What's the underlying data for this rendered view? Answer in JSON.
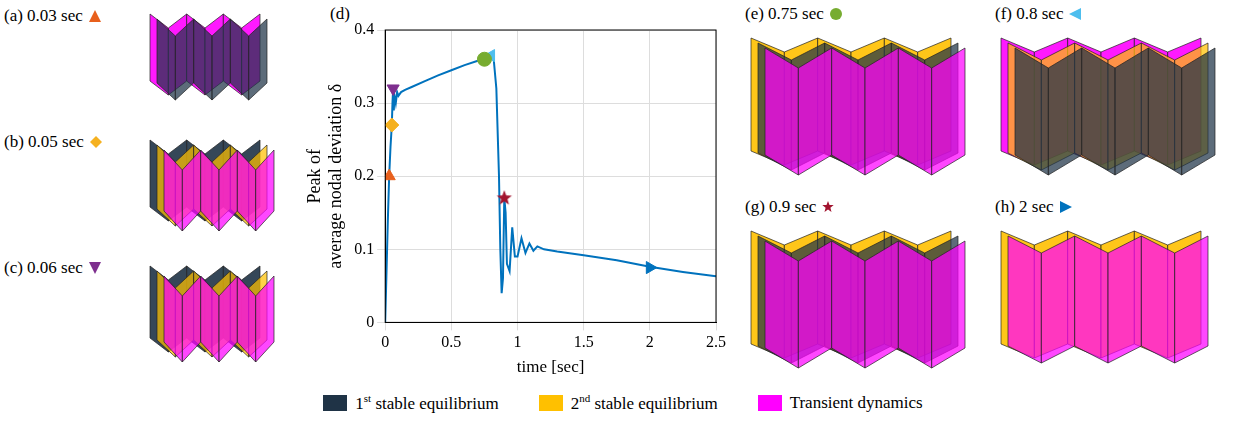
{
  "chart_data": {
    "type": "line",
    "panel_label": "(d)",
    "x_label": "time [sec]",
    "y_label": "Peak of average nodal deviation δ",
    "xlim": [
      0,
      2.5
    ],
    "xticks": [
      0,
      0.5,
      1,
      1.5,
      2,
      2.5
    ],
    "ylim": [
      0,
      0.4
    ],
    "yticks": [
      0,
      0.1,
      0.2,
      0.3,
      0.4
    ],
    "grid": true,
    "series": [
      {
        "color": "#0072bd",
        "line_style": "solid",
        "x": [
          0,
          0.01,
          0.02,
          0.03,
          0.04,
          0.05,
          0.055,
          0.06,
          0.065,
          0.07,
          0.08,
          0.09,
          0.1,
          0.12,
          0.15,
          0.2,
          0.3,
          0.4,
          0.5,
          0.6,
          0.7,
          0.75,
          0.8,
          0.82,
          0.84,
          0.86,
          0.87,
          0.88,
          0.89,
          0.9,
          0.91,
          0.92,
          0.94,
          0.96,
          0.98,
          1.0,
          1.03,
          1.06,
          1.09,
          1.12,
          1.15,
          1.2,
          1.3,
          1.5,
          1.75,
          2.0,
          2.25,
          2.5
        ],
        "values": [
          0,
          0.07,
          0.14,
          0.2,
          0.24,
          0.27,
          0.3,
          0.32,
          0.29,
          0.31,
          0.3,
          0.315,
          0.31,
          0.315,
          0.318,
          0.322,
          0.33,
          0.338,
          0.345,
          0.352,
          0.358,
          0.36,
          0.365,
          0.36,
          0.32,
          0.2,
          0.1,
          0.04,
          0.06,
          0.17,
          0.15,
          0.08,
          0.07,
          0.13,
          0.09,
          0.09,
          0.115,
          0.095,
          0.108,
          0.098,
          0.104,
          0.1,
          0.097,
          0.092,
          0.085,
          0.076,
          0.069,
          0.063
        ]
      }
    ]
  },
  "panels": [
    {
      "label": "(a) 0.03 sec",
      "marker": "triangle-up",
      "color": "#e8601c",
      "x": 0.03,
      "y": 0.2,
      "layers": [
        "Transient dynamics",
        "1st stable equilibrium"
      ]
    },
    {
      "label": "(b) 0.05 sec",
      "marker": "diamond",
      "color": "#f5b120",
      "x": 0.05,
      "y": 0.27,
      "layers": [
        "1st stable equilibrium",
        "2nd stable equilibrium",
        "Transient dynamics"
      ]
    },
    {
      "label": "(c) 0.06 sec",
      "marker": "triangle-down",
      "color": "#7e2f8e",
      "x": 0.06,
      "y": 0.32,
      "layers": [
        "1st stable equilibrium",
        "2nd stable equilibrium",
        "Transient dynamics"
      ]
    },
    {
      "label": "(e) 0.75 sec",
      "marker": "circle",
      "color": "#77ac30",
      "x": 0.75,
      "y": 0.36,
      "layers": [
        "2nd stable equilibrium",
        "1st stable equilibrium",
        "Transient dynamics"
      ]
    },
    {
      "label": "(f) 0.8 sec",
      "marker": "triangle-left",
      "color": "#4dbeee",
      "x": 0.8,
      "y": 0.365,
      "layers": [
        "Transient dynamics",
        "2nd stable equilibrium",
        "1st stable equilibrium"
      ]
    },
    {
      "label": "(g) 0.9 sec",
      "marker": "star",
      "color": "#a2142f",
      "x": 0.9,
      "y": 0.17,
      "layers": [
        "2nd stable equilibrium",
        "1st stable equilibrium",
        "Transient dynamics"
      ]
    },
    {
      "label": "(h) 2 sec",
      "marker": "triangle-right",
      "color": "#0072bd",
      "x": 2,
      "y": 0.075,
      "layers": [
        "2nd stable equilibrium",
        "Transient dynamics"
      ]
    }
  ],
  "legend_items": [
    {
      "name": "1st stable equilibrium",
      "color": "#1f3346"
    },
    {
      "name": "2nd stable equilibrium",
      "color": "#ffc000"
    },
    {
      "name": "Transient dynamics",
      "color": "#ff00ff"
    }
  ]
}
